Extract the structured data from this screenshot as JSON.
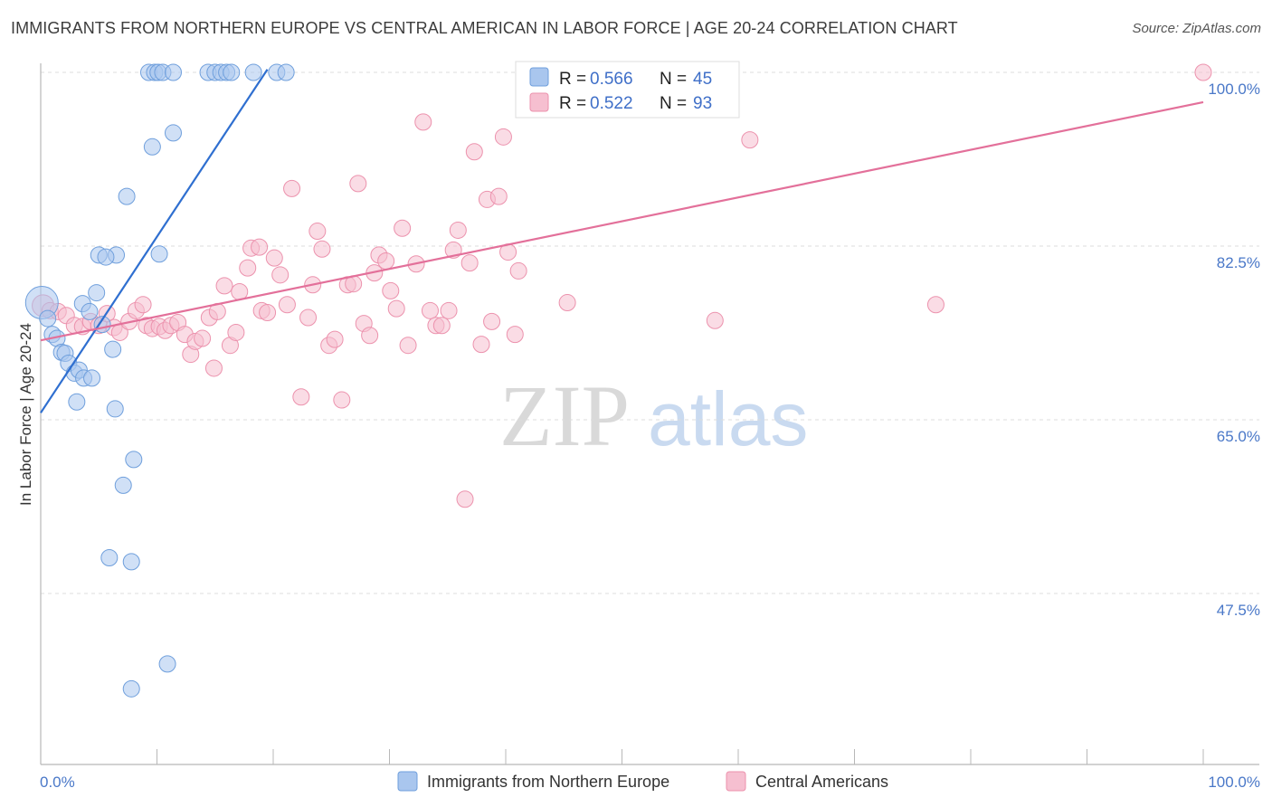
{
  "title": "IMMIGRANTS FROM NORTHERN EUROPE VS CENTRAL AMERICAN IN LABOR FORCE | AGE 20-24 CORRELATION CHART",
  "source": "Source: ZipAtlas.com",
  "watermark": {
    "zip": "ZIP",
    "atlas": "atlas"
  },
  "colors": {
    "blue_fill": "#a9c6ee",
    "blue_stroke": "#6f9fdc",
    "blue_line": "#2f6fd0",
    "pink_fill": "#f6bfd0",
    "pink_stroke": "#ec92ad",
    "pink_line": "#e3709a",
    "tick_text": "#4a78c8",
    "grid": "#dcdcdc"
  },
  "legend": {
    "rows": [
      {
        "r_label": "R =",
        "r_value": "0.566",
        "n_label": "N =",
        "n_value": "45"
      },
      {
        "r_label": "R =",
        "r_value": "0.522",
        "n_label": "N =",
        "n_value": "93"
      }
    ]
  },
  "chart_data": {
    "type": "scatter",
    "title": "IMMIGRANTS FROM NORTHERN EUROPE VS CENTRAL AMERICAN IN LABOR FORCE | AGE 20-24 CORRELATION CHART",
    "xlabel": "",
    "ylabel": "In Labor Force | Age 20-24",
    "xlim": [
      0,
      100
    ],
    "ylim": [
      32.5,
      101.5
    ],
    "x_tick_labels": [
      "0.0%",
      "100.0%"
    ],
    "y_ticks": [
      47.5,
      65.0,
      82.5,
      100.0
    ],
    "y_tick_labels": [
      "47.5%",
      "65.0%",
      "82.5%",
      "100.0%"
    ],
    "grid": true,
    "series": [
      {
        "name": "Immigrants from Northern Europe",
        "color": "blue",
        "trend": {
          "x": [
            0.0,
            19.5
          ],
          "y": [
            65.7,
            100.3
          ]
        },
        "points": [
          [
            0.1,
            76.8,
            18
          ],
          [
            0.6,
            75.2,
            9
          ],
          [
            1.0,
            73.6,
            9
          ],
          [
            1.4,
            73.2,
            9
          ],
          [
            1.8,
            71.8,
            9
          ],
          [
            2.1,
            71.7,
            9
          ],
          [
            2.4,
            70.7,
            9
          ],
          [
            2.9,
            69.7,
            9
          ],
          [
            3.3,
            70.0,
            9
          ],
          [
            3.7,
            69.2,
            9
          ],
          [
            4.4,
            69.2,
            9
          ],
          [
            3.1,
            66.8,
            9
          ],
          [
            3.6,
            76.7,
            9
          ],
          [
            4.2,
            75.9,
            9
          ],
          [
            4.8,
            77.8,
            9
          ],
          [
            5.3,
            74.6,
            9
          ],
          [
            6.2,
            72.1,
            9
          ],
          [
            6.5,
            81.6,
            9
          ],
          [
            5.0,
            81.6,
            9
          ],
          [
            5.6,
            81.4,
            9
          ],
          [
            7.4,
            87.5,
            9
          ],
          [
            10.2,
            81.7,
            9
          ],
          [
            9.6,
            92.5,
            9
          ],
          [
            11.4,
            93.9,
            9
          ],
          [
            6.4,
            66.1,
            9
          ],
          [
            8.0,
            61.0,
            9
          ],
          [
            7.1,
            58.4,
            9
          ],
          [
            5.9,
            51.1,
            9
          ],
          [
            7.8,
            50.7,
            9
          ],
          [
            10.9,
            40.4,
            9
          ],
          [
            7.8,
            37.9,
            9
          ],
          [
            9.3,
            100.0,
            9
          ],
          [
            9.8,
            100.0,
            9
          ],
          [
            10.1,
            100.0,
            9
          ],
          [
            10.5,
            100.0,
            9
          ],
          [
            11.4,
            100.0,
            9
          ],
          [
            14.4,
            100.0,
            9
          ],
          [
            15.0,
            100.0,
            9
          ],
          [
            15.5,
            100.0,
            9
          ],
          [
            16.0,
            100.0,
            9
          ],
          [
            16.4,
            100.0,
            9
          ],
          [
            18.3,
            100.0,
            9
          ],
          [
            20.3,
            100.0,
            9
          ],
          [
            21.1,
            100.0,
            9
          ]
        ]
      },
      {
        "name": "Central Americans",
        "color": "pink",
        "trend": {
          "x": [
            0.0,
            100.0
          ],
          "y": [
            73.0,
            97.0
          ]
        },
        "points": [
          [
            0.2,
            76.5,
            12
          ],
          [
            0.8,
            76.0,
            9
          ],
          [
            1.5,
            75.9,
            9
          ],
          [
            2.2,
            75.5,
            9
          ],
          [
            2.9,
            74.5,
            9
          ],
          [
            3.6,
            74.4,
            9
          ],
          [
            4.3,
            74.9,
            9
          ],
          [
            5.0,
            74.5,
            9
          ],
          [
            5.7,
            75.7,
            9
          ],
          [
            6.3,
            74.3,
            9
          ],
          [
            6.8,
            73.8,
            9
          ],
          [
            7.6,
            74.9,
            9
          ],
          [
            8.2,
            76.0,
            9
          ],
          [
            8.8,
            76.6,
            9
          ],
          [
            9.1,
            74.5,
            9
          ],
          [
            9.6,
            74.2,
            9
          ],
          [
            10.2,
            74.4,
            9
          ],
          [
            10.7,
            74.0,
            9
          ],
          [
            11.2,
            74.5,
            9
          ],
          [
            11.8,
            74.8,
            9
          ],
          [
            12.4,
            73.6,
            9
          ],
          [
            12.9,
            71.6,
            9
          ],
          [
            13.3,
            72.9,
            9
          ],
          [
            13.9,
            73.2,
            9
          ],
          [
            14.5,
            75.3,
            9
          ],
          [
            14.9,
            70.2,
            9
          ],
          [
            15.2,
            75.9,
            9
          ],
          [
            15.8,
            78.5,
            9
          ],
          [
            16.3,
            72.5,
            9
          ],
          [
            16.8,
            73.8,
            9
          ],
          [
            17.1,
            77.9,
            9
          ],
          [
            17.8,
            80.3,
            9
          ],
          [
            18.1,
            82.3,
            9
          ],
          [
            18.8,
            82.4,
            9
          ],
          [
            19.0,
            76.0,
            9
          ],
          [
            19.5,
            75.8,
            9
          ],
          [
            20.1,
            81.3,
            9
          ],
          [
            20.6,
            79.6,
            9
          ],
          [
            21.2,
            76.6,
            9
          ],
          [
            21.6,
            88.3,
            9
          ],
          [
            22.4,
            67.3,
            9
          ],
          [
            23.0,
            75.3,
            9
          ],
          [
            23.4,
            78.6,
            9
          ],
          [
            23.8,
            84.0,
            9
          ],
          [
            24.2,
            82.2,
            9
          ],
          [
            24.8,
            72.5,
            9
          ],
          [
            25.3,
            73.1,
            9
          ],
          [
            25.9,
            67.0,
            9
          ],
          [
            26.4,
            78.6,
            9
          ],
          [
            26.9,
            78.7,
            9
          ],
          [
            27.3,
            88.8,
            9
          ],
          [
            27.8,
            74.7,
            9
          ],
          [
            28.3,
            73.5,
            9
          ],
          [
            28.7,
            79.8,
            9
          ],
          [
            29.1,
            81.6,
            9
          ],
          [
            29.7,
            81.0,
            9
          ],
          [
            30.1,
            78.0,
            9
          ],
          [
            30.6,
            76.2,
            9
          ],
          [
            31.1,
            84.3,
            9
          ],
          [
            31.6,
            72.5,
            9
          ],
          [
            32.3,
            80.7,
            9
          ],
          [
            32.9,
            95.0,
            9
          ],
          [
            33.5,
            76.0,
            9
          ],
          [
            34.0,
            74.5,
            9
          ],
          [
            34.5,
            74.5,
            9
          ],
          [
            35.1,
            76.0,
            9
          ],
          [
            35.5,
            82.1,
            9
          ],
          [
            35.9,
            84.1,
            9
          ],
          [
            36.5,
            57.0,
            9
          ],
          [
            36.9,
            80.8,
            9
          ],
          [
            37.3,
            92.0,
            9
          ],
          [
            37.9,
            72.6,
            9
          ],
          [
            38.4,
            87.2,
            9
          ],
          [
            38.8,
            74.9,
            9
          ],
          [
            39.4,
            87.5,
            9
          ],
          [
            39.8,
            93.5,
            9
          ],
          [
            40.2,
            81.9,
            9
          ],
          [
            40.8,
            73.6,
            9
          ],
          [
            41.1,
            80.0,
            9
          ],
          [
            42.0,
            97.7,
            9
          ],
          [
            42.5,
            97.9,
            9
          ],
          [
            45.3,
            76.8,
            9
          ],
          [
            48.0,
            96.8,
            9
          ],
          [
            56.0,
            100.0,
            9
          ],
          [
            58.0,
            75.0,
            9
          ],
          [
            61.0,
            93.2,
            9
          ],
          [
            77.0,
            76.6,
            9
          ],
          [
            100.0,
            100.0,
            9
          ]
        ]
      }
    ]
  },
  "bottom_legend": [
    {
      "label": "Immigrants from Northern Europe"
    },
    {
      "label": "Central Americans"
    }
  ]
}
